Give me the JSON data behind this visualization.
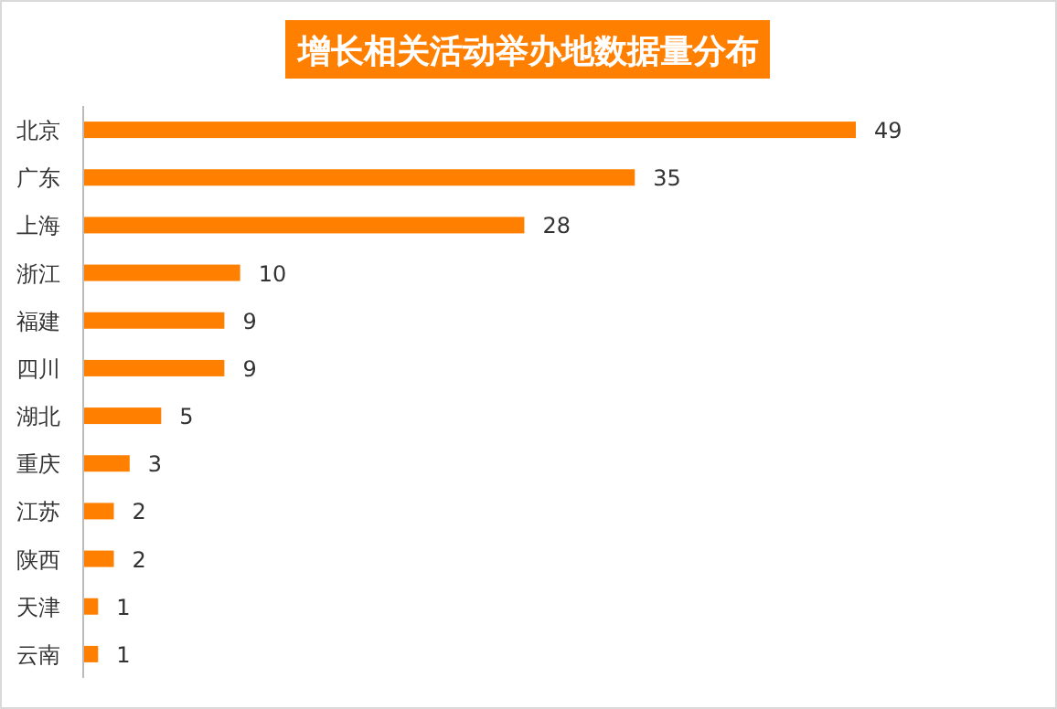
{
  "chart_data": {
    "type": "bar",
    "orientation": "horizontal",
    "title": "增长相关活动举办地数据量分布",
    "categories": [
      "北京",
      "广东",
      "上海",
      "浙江",
      "福建",
      "四川",
      "湖北",
      "重庆",
      "江苏",
      "陕西",
      "天津",
      "云南"
    ],
    "values": [
      49,
      35,
      28,
      10,
      9,
      9,
      5,
      3,
      2,
      2,
      1,
      1
    ],
    "color": "#ff7f00",
    "data_labels": true
  }
}
